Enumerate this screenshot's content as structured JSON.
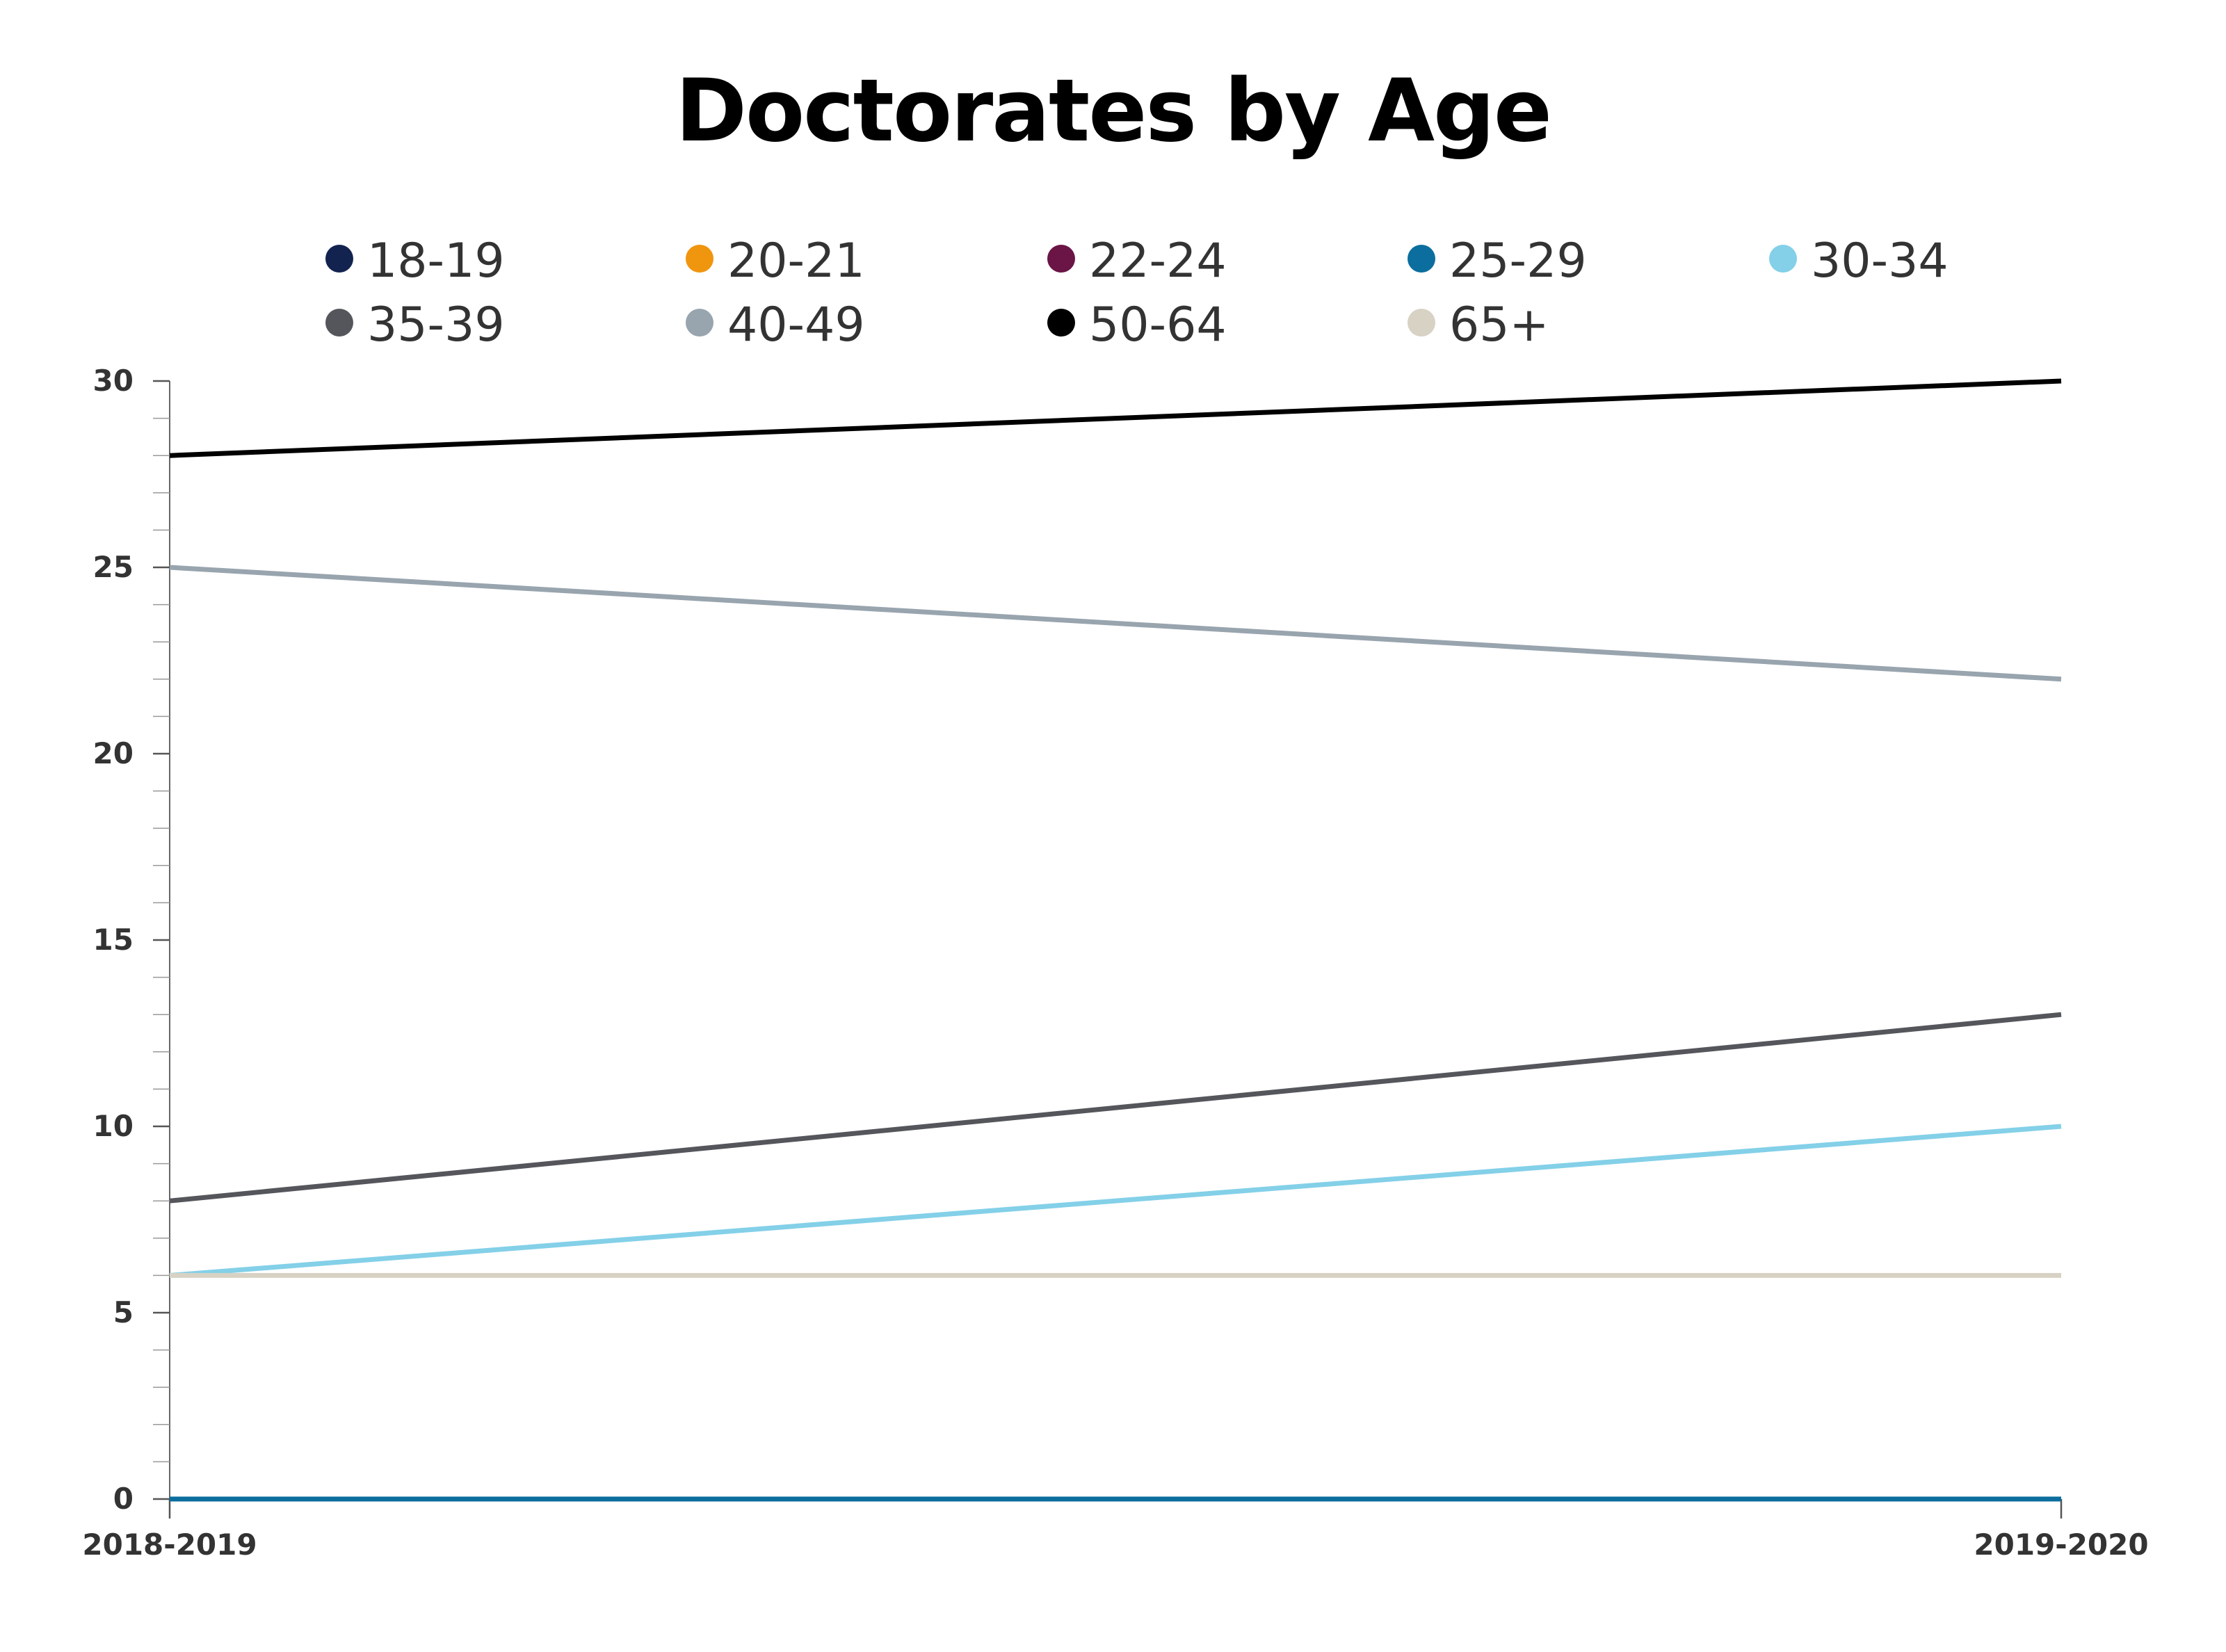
{
  "chart_data": {
    "type": "line",
    "title": "Doctorates by Age",
    "xlabel": "",
    "ylabel": "",
    "categories": [
      "2018-2019",
      "2019-2020"
    ],
    "ylim": [
      0,
      30
    ],
    "yticks": [
      "0",
      "5",
      "10",
      "15",
      "20",
      "25",
      "30"
    ],
    "grid": false,
    "legend_position": "top",
    "series": [
      {
        "name": "18-19",
        "color": "#13234f",
        "values": [
          0,
          0
        ]
      },
      {
        "name": "20-21",
        "color": "#f0950e",
        "values": [
          0,
          0
        ]
      },
      {
        "name": "22-24",
        "color": "#6b1446",
        "values": [
          0,
          0
        ]
      },
      {
        "name": "25-29",
        "color": "#0b6e9e",
        "values": [
          0,
          0
        ]
      },
      {
        "name": "30-34",
        "color": "#83d0e8",
        "values": [
          6,
          10
        ]
      },
      {
        "name": "35-39",
        "color": "#54565b",
        "values": [
          8,
          13
        ]
      },
      {
        "name": "40-49",
        "color": "#98a4ae",
        "values": [
          25,
          22
        ]
      },
      {
        "name": "50-64",
        "color": "#000000",
        "values": [
          28,
          30
        ]
      },
      {
        "name": "65+",
        "color": "#d7d2c4",
        "values": [
          6,
          6
        ]
      }
    ]
  }
}
